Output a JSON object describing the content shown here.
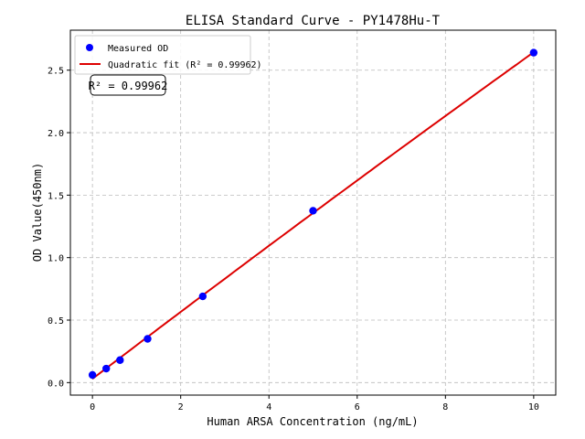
{
  "chart_data": {
    "type": "scatter",
    "title": "ELISA Standard Curve - PY1478Hu-T",
    "xlabel": "Human ARSA Concentration (ng/mL)",
    "ylabel": "OD Value(450nm)",
    "xlim": [
      -0.5,
      10.5
    ],
    "ylim": [
      -0.1,
      2.82
    ],
    "xticks": [
      0,
      2,
      4,
      6,
      8,
      10
    ],
    "yticks": [
      0.0,
      0.5,
      1.0,
      1.5,
      2.0,
      2.5
    ],
    "grid": true,
    "legend_position": "top-left",
    "series": [
      {
        "name": "Measured OD",
        "kind": "scatter",
        "color": "#0000ff",
        "x": [
          0,
          0.3125,
          0.625,
          1.25,
          2.5,
          5,
          10
        ],
        "y": [
          0.061,
          0.112,
          0.18,
          0.35,
          0.69,
          1.375,
          2.64
        ]
      },
      {
        "name": "Quadratic fit (R² = 0.99962)",
        "kind": "line",
        "color": "#dd0000"
      }
    ],
    "annotation": "R² = 0.99962"
  }
}
